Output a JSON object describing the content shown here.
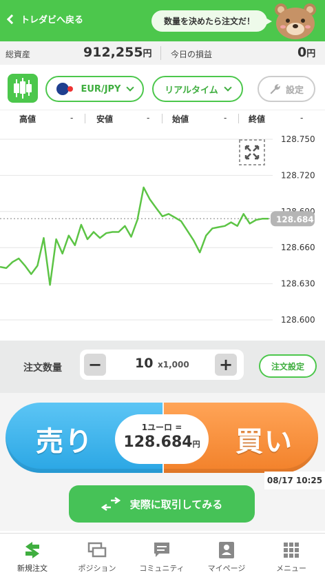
{
  "header": {
    "back_label": "トレダビへ戻る",
    "bubble_text": "数量を決めたら注文だ！"
  },
  "summary": {
    "total_assets_label": "総資産",
    "total_assets_value": "912,255",
    "total_assets_unit": "円",
    "today_pl_label": "今日の損益",
    "today_pl_value": "0",
    "today_pl_unit": "円"
  },
  "controls": {
    "pair": "EUR/JPY",
    "mode": "リアルタイム",
    "settings_label": "設定"
  },
  "ohlc": [
    {
      "label": "高値",
      "value": "-"
    },
    {
      "label": "安値",
      "value": "-"
    },
    {
      "label": "始値",
      "value": "-"
    },
    {
      "label": "終値",
      "value": "-"
    }
  ],
  "chart_data": {
    "type": "line",
    "y_ticks": [
      128.6,
      128.63,
      128.66,
      128.69,
      128.72,
      128.75
    ],
    "y_tick_labels": [
      "128.600",
      "128.630",
      "128.660",
      "128.690",
      "128.720",
      "128.750"
    ],
    "ylim": [
      128.6,
      128.75
    ],
    "current_value": 128.684,
    "current_value_label": "128.684",
    "series": [
      {
        "color": "#5cc445",
        "values": [
          128.644,
          128.643,
          128.648,
          128.651,
          128.645,
          128.638,
          128.645,
          128.668,
          128.629,
          128.667,
          128.655,
          128.67,
          128.662,
          128.679,
          128.667,
          128.673,
          128.668,
          128.672,
          128.673,
          128.673,
          128.678,
          128.669,
          128.683,
          128.71,
          128.7,
          128.693,
          128.686,
          128.688,
          128.685,
          128.682,
          128.674,
          128.666,
          128.656,
          128.67,
          128.676,
          128.677,
          128.678,
          128.681,
          128.678,
          128.688,
          128.68,
          128.683,
          128.684,
          128.684
        ]
      }
    ],
    "grid": true
  },
  "order": {
    "qty_label": "注文数量",
    "minus": "−",
    "plus": "+",
    "qty_value": "10",
    "qty_unit": "x1,000",
    "order_settings_label": "注文設定"
  },
  "trade": {
    "sell_label": "売り",
    "buy_label": "買い",
    "rate_title": "1ユーロ =",
    "rate_value": "128.684",
    "rate_unit": "円",
    "timestamp": "08/17 10:25",
    "real_trade_label": "実際に取引してみる"
  },
  "tabs": [
    {
      "label": "新規注文",
      "icon": "swap-icon",
      "active": true
    },
    {
      "label": "ポジション",
      "icon": "position-icon",
      "active": false
    },
    {
      "label": "コミュニティ",
      "icon": "chat-icon",
      "active": false
    },
    {
      "label": "マイページ",
      "icon": "user-icon",
      "active": false
    },
    {
      "label": "メニュー",
      "icon": "grid-icon",
      "active": false
    }
  ],
  "colors": {
    "brand_green": "#4cc74c",
    "sell_blue": "#2aa6e4",
    "buy_orange": "#f2812a"
  }
}
